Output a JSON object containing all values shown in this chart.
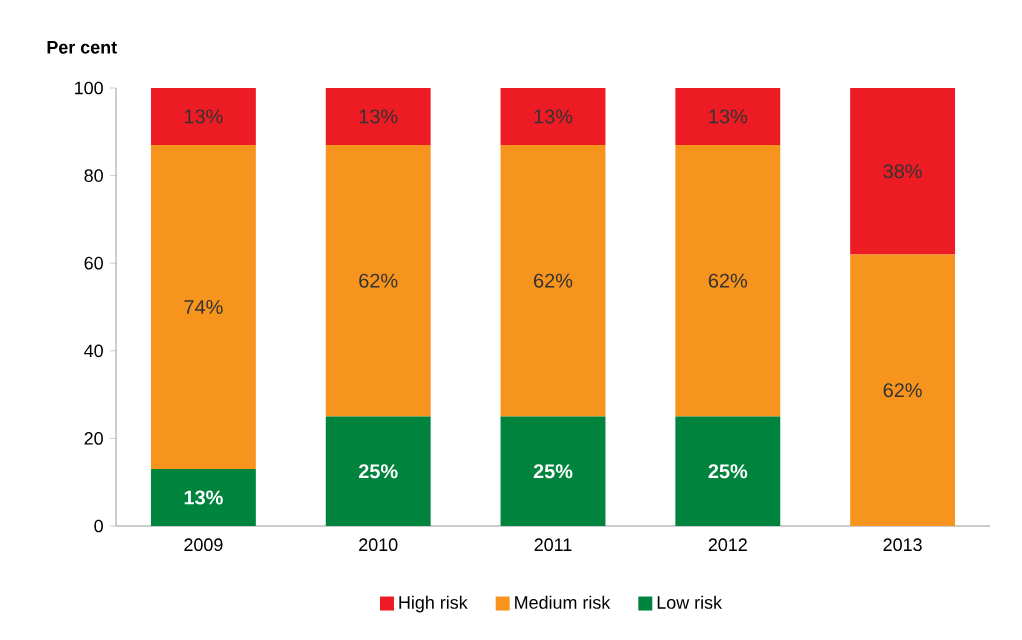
{
  "chart_data": {
    "type": "bar",
    "stacked": true,
    "ylabel": "Per cent",
    "categories": [
      "2009",
      "2010",
      "2011",
      "2012",
      "2013"
    ],
    "series": [
      {
        "name": "Low risk",
        "color": "#00843d",
        "values": [
          13,
          25,
          25,
          25,
          0
        ],
        "value_labels": [
          "13%",
          "25%",
          "25%",
          "25%",
          null
        ]
      },
      {
        "name": "Medium risk",
        "color": "#f7941d",
        "values": [
          74,
          62,
          62,
          62,
          62
        ],
        "value_labels": [
          "74%",
          "62%",
          "62%",
          "62%",
          "62%"
        ]
      },
      {
        "name": "High risk",
        "color": "#ed1c24",
        "values": [
          13,
          13,
          13,
          13,
          38
        ],
        "value_labels": [
          "13%",
          "13%",
          "13%",
          "13%",
          "38%"
        ]
      }
    ],
    "ylim": [
      0,
      100
    ],
    "yticks": [
      0,
      20,
      40,
      60,
      80,
      100
    ],
    "legend": "bottom",
    "grid": false
  }
}
